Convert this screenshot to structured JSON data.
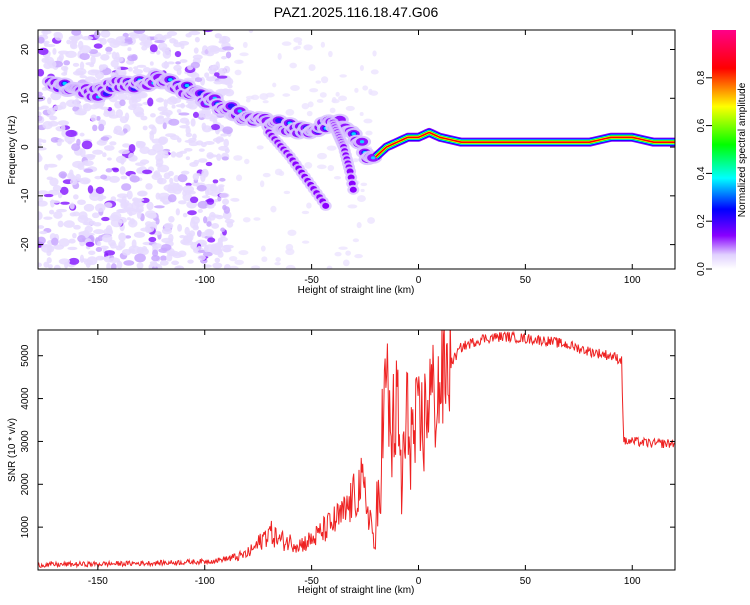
{
  "title": "PAZ1.2025.116.18.47.G06",
  "chart_data": [
    {
      "type": "heatmap",
      "xlabel": "Height of straight line (km)",
      "ylabel": "Frequency (Hz)",
      "xlim": [
        -178,
        120
      ],
      "ylim": [
        -25,
        24
      ],
      "xticks": [
        -150,
        -100,
        -50,
        0,
        50,
        100
      ],
      "yticks": [
        -20,
        -10,
        0,
        10,
        20
      ],
      "colorbar": {
        "label": "Normalized spectral amplitude",
        "range": [
          0,
          1
        ],
        "ticks": [
          0.0,
          0.2,
          0.4,
          0.6,
          0.8
        ],
        "colormap": [
          "#ffffff",
          "#d8c8ff",
          "#8800ff",
          "#0000ff",
          "#00ffff",
          "#00ff00",
          "#ffff00",
          "#ff0000",
          "#ff0088"
        ]
      },
      "ridge": {
        "x": [
          -170,
          -160,
          -150,
          -140,
          -130,
          -120,
          -110,
          -100,
          -90,
          -80,
          -70,
          -60,
          -50,
          -40,
          -35,
          -30,
          -25,
          -22,
          -20,
          -15,
          -10,
          -5,
          0,
          5,
          10,
          20,
          40,
          60,
          80,
          90,
          100,
          110,
          120
        ],
        "y": [
          13,
          12,
          11,
          13,
          13,
          14,
          12,
          10,
          8,
          6,
          5,
          4,
          3,
          5,
          5,
          3,
          -1,
          -3,
          -2,
          0,
          1,
          2,
          2,
          3,
          2,
          1,
          1,
          1,
          1,
          2,
          2,
          1,
          1
        ]
      },
      "branches": [
        {
          "x": [
            -70,
            -60,
            -55,
            -50,
            -45,
            -42
          ],
          "y": [
            3,
            -2,
            -5,
            -8,
            -11,
            -13
          ]
        },
        {
          "x": [
            -40,
            -35,
            -32,
            -30
          ],
          "y": [
            5,
            0,
            -5,
            -10
          ]
        }
      ]
    },
    {
      "type": "line",
      "xlabel": "Height of straight line (km)",
      "ylabel": "SNR (10 * v/v)",
      "xlim": [
        -178,
        120
      ],
      "ylim": [
        0,
        5600
      ],
      "xticks": [
        -150,
        -100,
        -50,
        0,
        50,
        100
      ],
      "yticks": [
        1000,
        2000,
        3000,
        4000,
        5000
      ],
      "series": [
        {
          "color": "#ee2222",
          "x": [
            -178,
            -150,
            -125,
            -110,
            -100,
            -95,
            -90,
            -85,
            -80,
            -75,
            -70,
            -65,
            -60,
            -55,
            -50,
            -45,
            -40,
            -35,
            -30,
            -27,
            -25,
            -22,
            -20,
            -18,
            -15,
            -13,
            -10,
            -8,
            -5,
            -3,
            0,
            3,
            5,
            8,
            10,
            15,
            20,
            30,
            40,
            50,
            60,
            70,
            80,
            90,
            95,
            96,
            100,
            110,
            120
          ],
          "y": [
            120,
            140,
            160,
            180,
            200,
            220,
            260,
            300,
            380,
            600,
            900,
            700,
            650,
            600,
            700,
            900,
            1100,
            1300,
            1700,
            2000,
            1700,
            1100,
            300,
            2500,
            4500,
            3000,
            3800,
            2000,
            3600,
            3000,
            3200,
            3500,
            4200,
            4000,
            4300,
            4800,
            5200,
            5400,
            5450,
            5400,
            5350,
            5250,
            5100,
            5000,
            4900,
            3000,
            3000,
            2950,
            2950
          ]
        }
      ]
    }
  ]
}
